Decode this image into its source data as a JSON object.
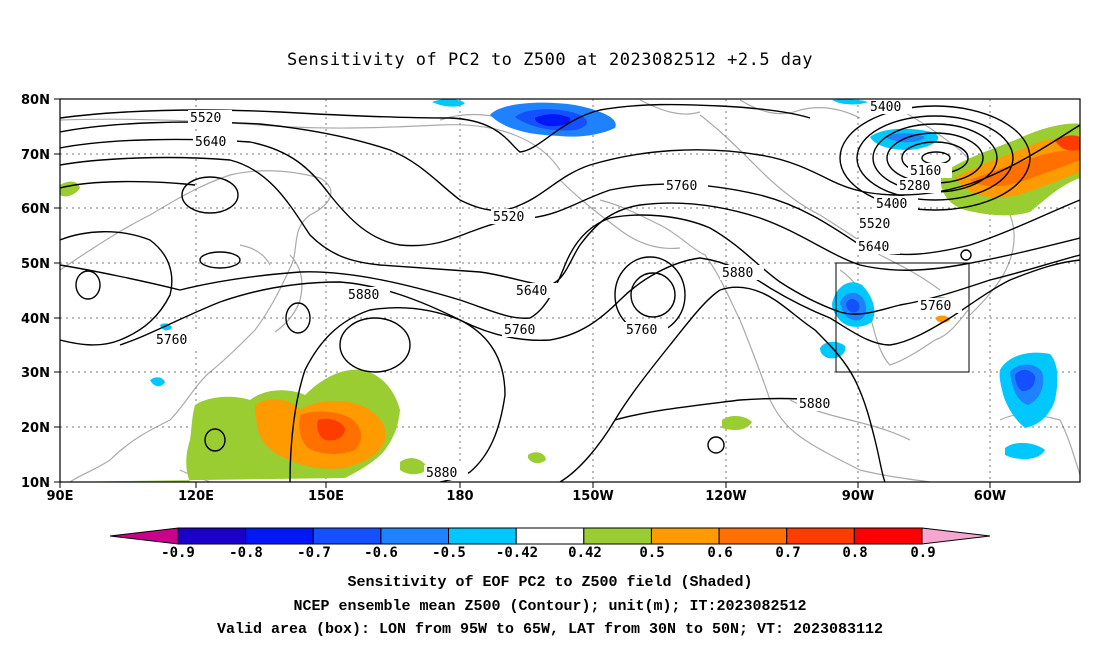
{
  "title": "Sensitivity of PC2 to Z500 at 2023082512 +2.5 day",
  "lat_labels": [
    "80N",
    "70N",
    "60N",
    "50N",
    "40N",
    "30N",
    "20N",
    "10N"
  ],
  "lon_labels": [
    "90E",
    "120E",
    "150E",
    "180",
    "150W",
    "120W",
    "90W",
    "60W"
  ],
  "contour_labels": [
    "5520",
    "5640",
    "5520",
    "5760",
    "5400",
    "5160",
    "5280",
    "5400",
    "5520",
    "5640",
    "5880",
    "5880",
    "5640",
    "5760",
    "5760",
    "5760",
    "5760",
    "5880",
    "5880"
  ],
  "colorbar": {
    "ticks": [
      "-0.9",
      "-0.8",
      "-0.7",
      "-0.6",
      "-0.5",
      "-0.42",
      "0.42",
      "0.5",
      "0.6",
      "0.7",
      "0.8",
      "0.9"
    ],
    "colors": [
      "#c8008a",
      "#1a00c8",
      "#0018f5",
      "#1450ff",
      "#1e82ff",
      "#00c8ff",
      "#ffffff",
      "#9acd32",
      "#ff9a00",
      "#ff7000",
      "#ff3c00",
      "#ff0000",
      "#f7a6cf"
    ]
  },
  "captions": {
    "line1": "Sensitivity of EOF PC2 to Z500 field (Shaded)",
    "line2": "NCEP ensemble mean Z500 (Contour); unit(m); IT:2023082512",
    "line3": "Valid area (box): LON from 95W to 65W, LAT from 30N to 50N; VT: 2023083112"
  }
}
